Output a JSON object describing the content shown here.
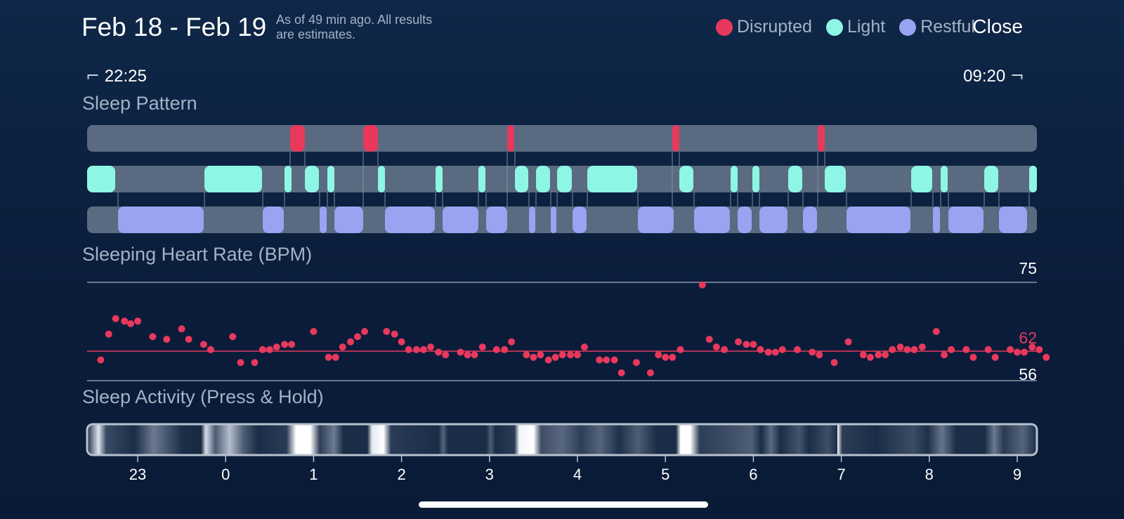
{
  "header": {
    "date_range": "Feb 18 - Feb 19",
    "as_of_line1": "As of 49 min ago. All results",
    "as_of_line2": "are estimates.",
    "close_label": "Close"
  },
  "legend": [
    {
      "label": "Disrupted",
      "color": "#e8395d"
    },
    {
      "label": "Light",
      "color": "#8ef6e4"
    },
    {
      "label": "Restful",
      "color": "#9aa2f2"
    }
  ],
  "time_range": {
    "start": "22:25",
    "end": "09:20"
  },
  "sections": {
    "sleep_pattern": "Sleep Pattern",
    "heart_rate": "Sleeping Heart Rate (BPM)",
    "activity": "Sleep Activity (Press & Hold)"
  },
  "heart_rate": {
    "max_label": "75",
    "avg_label": "62",
    "min_label": "56",
    "max": 75,
    "avg": 62,
    "min": 56,
    "points_hours": [
      [
        -1.42,
        60
      ],
      [
        -1.33,
        65
      ],
      [
        -1.25,
        68
      ],
      [
        -1.15,
        67.5
      ],
      [
        -1.08,
        67
      ],
      [
        -1.0,
        67.5
      ],
      [
        -0.83,
        64.5
      ],
      [
        -0.67,
        64
      ],
      [
        -0.5,
        66
      ],
      [
        -0.42,
        64
      ],
      [
        -0.25,
        63
      ],
      [
        -0.17,
        62
      ],
      [
        0.08,
        64.5
      ],
      [
        0.17,
        59.5
      ],
      [
        0.33,
        59.5
      ],
      [
        0.42,
        62
      ],
      [
        0.5,
        62
      ],
      [
        0.58,
        62.5
      ],
      [
        0.67,
        63
      ],
      [
        0.75,
        63
      ],
      [
        1.0,
        65.5
      ],
      [
        1.17,
        60.5
      ],
      [
        1.25,
        60.5
      ],
      [
        1.33,
        62.5
      ],
      [
        1.42,
        63.5
      ],
      [
        1.5,
        64.5
      ],
      [
        1.58,
        65.5
      ],
      [
        1.83,
        65.5
      ],
      [
        1.92,
        65
      ],
      [
        2.0,
        63.5
      ],
      [
        2.08,
        62
      ],
      [
        2.17,
        62
      ],
      [
        2.25,
        62
      ],
      [
        2.33,
        62.5
      ],
      [
        2.42,
        61.5
      ],
      [
        2.5,
        61
      ],
      [
        2.67,
        61.5
      ],
      [
        2.75,
        61
      ],
      [
        2.83,
        61
      ],
      [
        2.92,
        62.5
      ],
      [
        3.08,
        62
      ],
      [
        3.17,
        62
      ],
      [
        3.25,
        63.5
      ],
      [
        3.42,
        61
      ],
      [
        3.5,
        60.5
      ],
      [
        3.58,
        61
      ],
      [
        3.67,
        60
      ],
      [
        3.75,
        60.5
      ],
      [
        3.83,
        61
      ],
      [
        3.92,
        61
      ],
      [
        4.0,
        61
      ],
      [
        4.08,
        62.5
      ],
      [
        4.25,
        60
      ],
      [
        4.33,
        60
      ],
      [
        4.42,
        60
      ],
      [
        4.5,
        57.5
      ],
      [
        4.67,
        59.5
      ],
      [
        4.83,
        57.5
      ],
      [
        4.92,
        61
      ],
      [
        5.0,
        60.5
      ],
      [
        5.08,
        60.5
      ],
      [
        5.17,
        62
      ],
      [
        5.42,
        74.5
      ],
      [
        5.5,
        64
      ],
      [
        5.58,
        62.5
      ],
      [
        5.67,
        62
      ],
      [
        5.83,
        63.5
      ],
      [
        5.92,
        63
      ],
      [
        6.0,
        63
      ],
      [
        6.08,
        62
      ],
      [
        6.17,
        61.5
      ],
      [
        6.25,
        61.5
      ],
      [
        6.33,
        62
      ],
      [
        6.5,
        62
      ],
      [
        6.67,
        61.5
      ],
      [
        6.75,
        61
      ],
      [
        6.92,
        59.5
      ],
      [
        7.08,
        63.5
      ],
      [
        7.25,
        61
      ],
      [
        7.33,
        60.5
      ],
      [
        7.42,
        61
      ],
      [
        7.5,
        61
      ],
      [
        7.58,
        62
      ],
      [
        7.67,
        62.5
      ],
      [
        7.75,
        62
      ],
      [
        7.83,
        62
      ],
      [
        7.92,
        62.5
      ],
      [
        8.08,
        65.5
      ],
      [
        8.17,
        61
      ],
      [
        8.25,
        62
      ],
      [
        8.42,
        62
      ],
      [
        8.5,
        60.5
      ],
      [
        8.67,
        62
      ],
      [
        8.75,
        60.5
      ],
      [
        8.92,
        62
      ],
      [
        9.0,
        61.5
      ],
      [
        9.08,
        61.5
      ],
      [
        9.17,
        62.5
      ],
      [
        9.25,
        62
      ],
      [
        9.33,
        60.5
      ]
    ]
  },
  "axis": {
    "ticks": [
      "23",
      "0",
      "1",
      "2",
      "3",
      "4",
      "5",
      "6",
      "7",
      "8",
      "9"
    ],
    "tick_hours": [
      23,
      24,
      25,
      26,
      27,
      28,
      29,
      30,
      31,
      32,
      33
    ]
  }
}
